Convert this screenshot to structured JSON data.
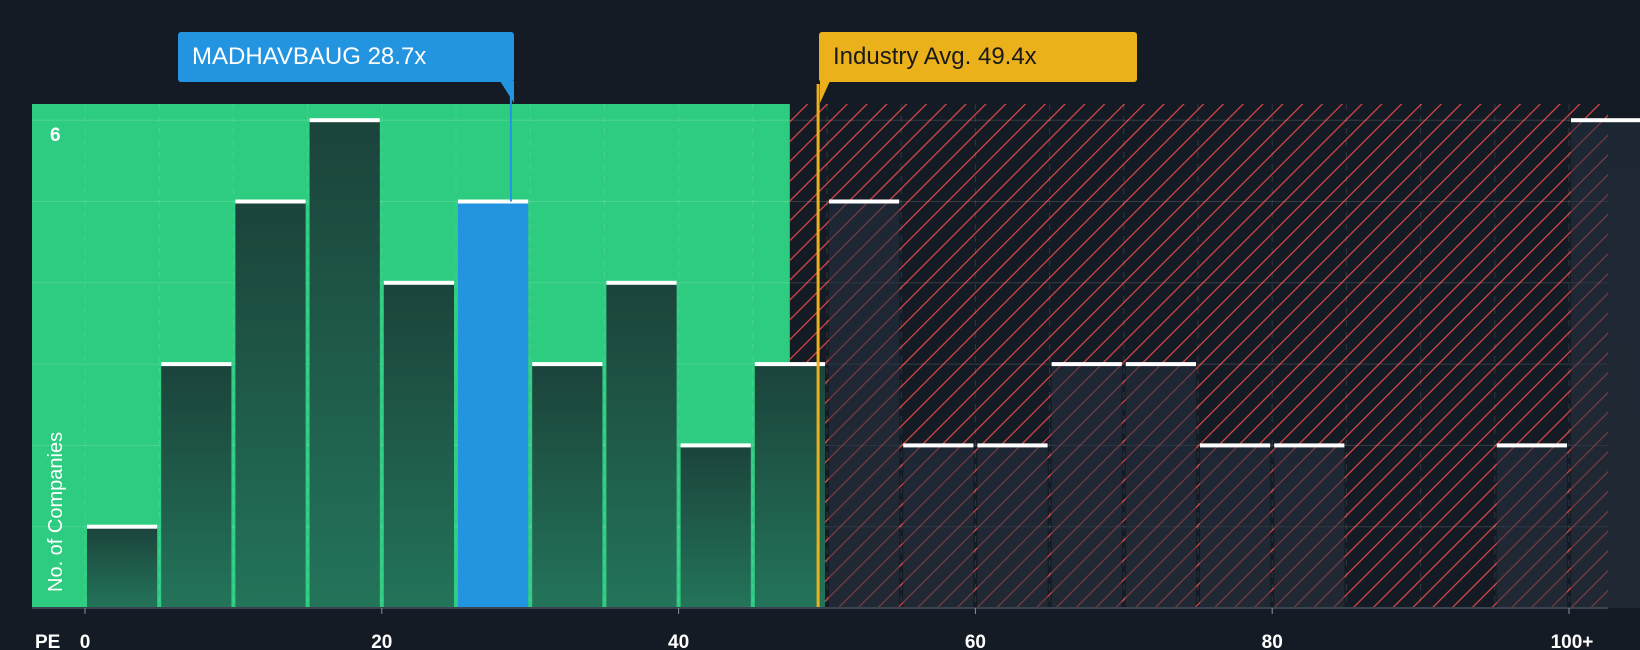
{
  "chart_data": {
    "type": "bar",
    "xlabel": "PE",
    "ylabel": "No. of Companies",
    "x_ticks": [
      "0",
      "20",
      "40",
      "60",
      "80",
      "100+"
    ],
    "y_ticks": [
      "6"
    ],
    "ylim": [
      0,
      6.2
    ],
    "bin_width": 5,
    "bins": [
      {
        "start": 0,
        "count": 1
      },
      {
        "start": 5,
        "count": 3
      },
      {
        "start": 10,
        "count": 5
      },
      {
        "start": 15,
        "count": 6
      },
      {
        "start": 20,
        "count": 4
      },
      {
        "start": 25,
        "count": 5,
        "highlight": true
      },
      {
        "start": 30,
        "count": 3
      },
      {
        "start": 35,
        "count": 4
      },
      {
        "start": 40,
        "count": 2
      },
      {
        "start": 45,
        "count": 3
      },
      {
        "start": 50,
        "count": 5
      },
      {
        "start": 55,
        "count": 2
      },
      {
        "start": 60,
        "count": 2
      },
      {
        "start": 65,
        "count": 3
      },
      {
        "start": 70,
        "count": 3
      },
      {
        "start": 75,
        "count": 2
      },
      {
        "start": 80,
        "count": 2
      },
      {
        "start": 85,
        "count": 0
      },
      {
        "start": 90,
        "count": 0
      },
      {
        "start": 95,
        "count": 2
      },
      {
        "start": 100,
        "count": 6
      }
    ],
    "company": {
      "label": "MADHAVBAUG 28.7x",
      "value": 28.7
    },
    "industry_avg": {
      "label": "Industry Avg. 49.4x",
      "value": 49.4
    },
    "fair_region_end": 47.5,
    "grid": true
  },
  "colors": {
    "background": "#151b24",
    "fair_region": "#2ecc80",
    "bar_dark": "#1e4840",
    "highlight_bar": "#2394e0",
    "hatch": "#e04848",
    "company_accent": "#2394e0",
    "industry_accent": "#ebb11a",
    "bar_cap": "#ffffff"
  }
}
